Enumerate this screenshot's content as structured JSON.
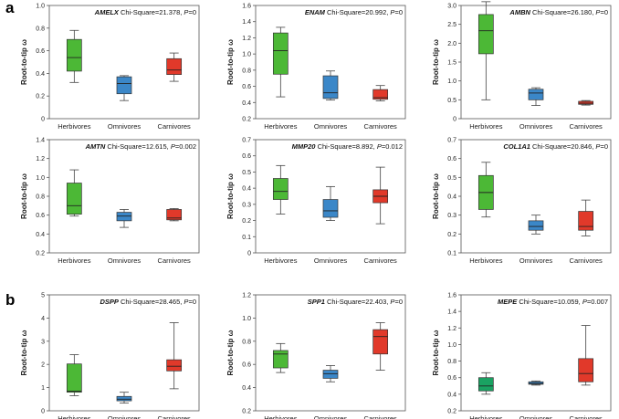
{
  "panels": [
    {
      "letter": "a"
    },
    {
      "letter": "b"
    }
  ],
  "chart_data": [
    {
      "type": "box",
      "panel": "a",
      "gene": "AMELX",
      "stat_label": " Chi-Square=21.378, ",
      "p_label": "P",
      "p_value": "=0",
      "ylabel": "Root-to-tip ω",
      "ylim": [
        0,
        1.0
      ],
      "yticks": [
        "0",
        "0.2",
        "0.4",
        "0.6",
        "0.8",
        "1.0"
      ],
      "categories": [
        "Herbivores",
        "Omnivores",
        "Carnivores"
      ],
      "boxes": [
        {
          "min": 0.32,
          "q1": 0.42,
          "median": 0.54,
          "q3": 0.7,
          "max": 0.78,
          "color": "#4cb836"
        },
        {
          "min": 0.16,
          "q1": 0.22,
          "median": 0.31,
          "q3": 0.37,
          "max": 0.38,
          "color": "#3b87c8"
        },
        {
          "min": 0.33,
          "q1": 0.39,
          "median": 0.43,
          "q3": 0.53,
          "max": 0.58,
          "color": "#e1392a"
        }
      ]
    },
    {
      "type": "box",
      "panel": "a",
      "gene": "ENAM",
      "stat_label": " Chi-Square=20.992, ",
      "p_label": "P",
      "p_value": "=0",
      "ylabel": "Root-to-tip ω",
      "ylim": [
        0.2,
        1.6
      ],
      "yticks": [
        "0.2",
        "0.4",
        "0.6",
        "0.8",
        "1.0",
        "1.2",
        "1.4",
        "1.6"
      ],
      "categories": [
        "Herbivores",
        "Omnivores",
        "Carnivores"
      ],
      "boxes": [
        {
          "min": 0.47,
          "q1": 0.75,
          "median": 1.04,
          "q3": 1.26,
          "max": 1.33,
          "color": "#4cb836"
        },
        {
          "min": 0.43,
          "q1": 0.45,
          "median": 0.52,
          "q3": 0.73,
          "max": 0.79,
          "color": "#3b87c8"
        },
        {
          "min": 0.42,
          "q1": 0.44,
          "median": 0.46,
          "q3": 0.56,
          "max": 0.61,
          "color": "#e1392a"
        }
      ]
    },
    {
      "type": "box",
      "panel": "a",
      "gene": "AMBN",
      "stat_label": " Chi-Square=26.180, ",
      "p_label": "P",
      "p_value": "=0",
      "ylabel": "Root-to-tip ω",
      "ylim": [
        0,
        3.0
      ],
      "yticks": [
        "0",
        "0.5",
        "1.0",
        "1.5",
        "2.0",
        "2.5",
        "3.0"
      ],
      "categories": [
        "Herbivores",
        "Omnivores",
        "Carnivores"
      ],
      "boxes": [
        {
          "min": 0.5,
          "q1": 1.72,
          "median": 2.33,
          "q3": 2.76,
          "max": 3.1,
          "color": "#4cb836"
        },
        {
          "min": 0.35,
          "q1": 0.5,
          "median": 0.68,
          "q3": 0.78,
          "max": 0.82,
          "color": "#3b87c8"
        },
        {
          "min": 0.36,
          "q1": 0.38,
          "median": 0.41,
          "q3": 0.46,
          "max": 0.48,
          "color": "#e1392a"
        }
      ]
    },
    {
      "type": "box",
      "panel": "a",
      "gene": "AMTN",
      "stat_label": " Chi-Square=12.615, ",
      "p_label": "P",
      "p_value": "=0.002",
      "ylabel": "Root-to-tip ω",
      "ylim": [
        0.2,
        1.4
      ],
      "yticks": [
        "0.2",
        "0.4",
        "0.6",
        "0.8",
        "1.0",
        "1.2",
        "1.4"
      ],
      "categories": [
        "Herbivores",
        "Omnivores",
        "Carnivores"
      ],
      "boxes": [
        {
          "min": 0.59,
          "q1": 0.61,
          "median": 0.7,
          "q3": 0.94,
          "max": 1.08,
          "color": "#4cb836"
        },
        {
          "min": 0.47,
          "q1": 0.54,
          "median": 0.59,
          "q3": 0.63,
          "max": 0.66,
          "color": "#3b87c8"
        },
        {
          "min": 0.54,
          "q1": 0.55,
          "median": 0.57,
          "q3": 0.66,
          "max": 0.67,
          "color": "#e1392a"
        }
      ]
    },
    {
      "type": "box",
      "panel": "a",
      "gene": "MMP20",
      "stat_label": " Chi-Square=8.892, ",
      "p_label": "P",
      "p_value": "=0.012",
      "ylabel": "Root-to-tip ω",
      "ylim": [
        0,
        0.7
      ],
      "yticks": [
        "0",
        "0.1",
        "0.2",
        "0.3",
        "0.4",
        "0.5",
        "0.6",
        "0.7"
      ],
      "categories": [
        "Herbivores",
        "Omnivores",
        "Carnivores"
      ],
      "boxes": [
        {
          "min": 0.24,
          "q1": 0.33,
          "median": 0.38,
          "q3": 0.46,
          "max": 0.54,
          "color": "#4cb836"
        },
        {
          "min": 0.2,
          "q1": 0.22,
          "median": 0.26,
          "q3": 0.33,
          "max": 0.41,
          "color": "#3b87c8"
        },
        {
          "min": 0.18,
          "q1": 0.31,
          "median": 0.35,
          "q3": 0.39,
          "max": 0.53,
          "color": "#e1392a"
        }
      ]
    },
    {
      "type": "box",
      "panel": "a",
      "gene": "COL1A1",
      "stat_label": " Chi-Square=20.846, ",
      "p_label": "P",
      "p_value": "=0",
      "ylabel": "Root-to-tip ω",
      "ylim": [
        0.1,
        0.7
      ],
      "yticks": [
        "0.1",
        "0.2",
        "0.3",
        "0.4",
        "0.5",
        "0.6",
        "0.7"
      ],
      "categories": [
        "Herbivores",
        "Omnivores",
        "Carnivores"
      ],
      "boxes": [
        {
          "min": 0.29,
          "q1": 0.33,
          "median": 0.42,
          "q3": 0.51,
          "max": 0.58,
          "color": "#4cb836"
        },
        {
          "min": 0.2,
          "q1": 0.22,
          "median": 0.24,
          "q3": 0.27,
          "max": 0.3,
          "color": "#3b87c8"
        },
        {
          "min": 0.19,
          "q1": 0.22,
          "median": 0.24,
          "q3": 0.32,
          "max": 0.38,
          "color": "#e1392a"
        }
      ]
    },
    {
      "type": "box",
      "panel": "b",
      "gene": "DSPP",
      "stat_label": " Chi-Square=28.465, ",
      "p_label": "P",
      "p_value": "=0",
      "ylabel": "Root-to-tip ω",
      "ylim": [
        0,
        5
      ],
      "yticks": [
        "0",
        "1",
        "2",
        "3",
        "4",
        "5"
      ],
      "categories": [
        "Herbivores",
        "Omnivores",
        "Carnivores"
      ],
      "boxes": [
        {
          "min": 0.65,
          "q1": 0.8,
          "median": 0.85,
          "q3": 2.02,
          "max": 2.42,
          "color": "#4cb836"
        },
        {
          "min": 0.33,
          "q1": 0.43,
          "median": 0.5,
          "q3": 0.62,
          "max": 0.8,
          "color": "#3b87c8"
        },
        {
          "min": 0.95,
          "q1": 1.72,
          "median": 1.92,
          "q3": 2.2,
          "max": 3.8,
          "color": "#e1392a"
        }
      ]
    },
    {
      "type": "box",
      "panel": "b",
      "gene": "SPP1",
      "stat_label": " Chi-Square=22.403, ",
      "p_label": "P",
      "p_value": "=0",
      "ylabel": "Root-to-tip ω",
      "ylim": [
        0.2,
        1.2
      ],
      "yticks": [
        "0.2",
        "0.4",
        "0.6",
        "0.8",
        "1.0",
        "1.2"
      ],
      "categories": [
        "Herbivores",
        "Omnivores",
        "Carnivores"
      ],
      "boxes": [
        {
          "min": 0.53,
          "q1": 0.57,
          "median": 0.69,
          "q3": 0.72,
          "max": 0.78,
          "color": "#4cb836"
        },
        {
          "min": 0.45,
          "q1": 0.48,
          "median": 0.52,
          "q3": 0.55,
          "max": 0.59,
          "color": "#3b87c8"
        },
        {
          "min": 0.55,
          "q1": 0.69,
          "median": 0.84,
          "q3": 0.9,
          "max": 0.96,
          "color": "#e1392a"
        }
      ]
    },
    {
      "type": "box",
      "panel": "b",
      "gene": "MEPE",
      "stat_label": " Chi-Square=10.059, ",
      "p_label": "P",
      "p_value": "=0.007",
      "ylabel": "Root-to-tip ω",
      "ylim": [
        0.2,
        1.6
      ],
      "yticks": [
        "0.2",
        "0.4",
        "0.6",
        "0.8",
        "1.0",
        "1.2",
        "1.4",
        "1.6"
      ],
      "categories": [
        "Herbivores",
        "Omnivores",
        "Carnivores"
      ],
      "boxes": [
        {
          "min": 0.4,
          "q1": 0.44,
          "median": 0.5,
          "q3": 0.6,
          "max": 0.66,
          "color": "#1aa262"
        },
        {
          "min": 0.51,
          "q1": 0.52,
          "median": 0.53,
          "q3": 0.55,
          "max": 0.56,
          "color": "#3b87c8"
        },
        {
          "min": 0.51,
          "q1": 0.55,
          "median": 0.65,
          "q3": 0.83,
          "max": 1.23,
          "color": "#e1392a"
        }
      ]
    }
  ]
}
